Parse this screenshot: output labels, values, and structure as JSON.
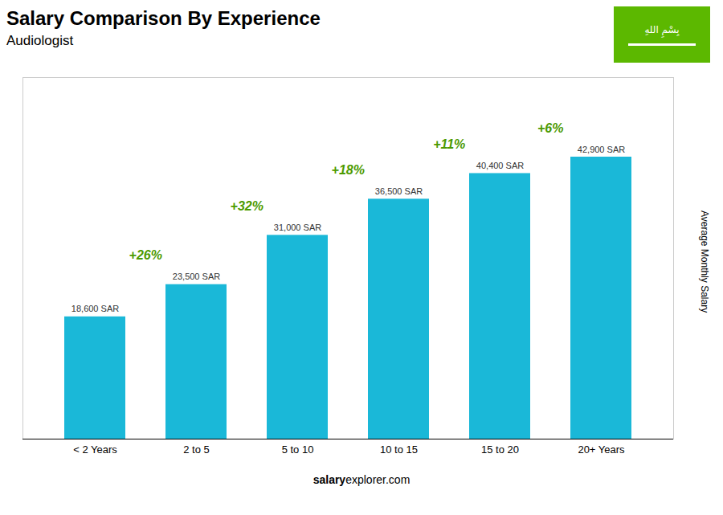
{
  "chart_data": {
    "type": "bar",
    "title": "Salary Comparison By Experience",
    "subtitle": "Audiologist",
    "categories": [
      "< 2 Years",
      "2 to 5",
      "5 to 10",
      "10 to 15",
      "15 to 20",
      "20+ Years"
    ],
    "values": [
      18600,
      23500,
      31000,
      36500,
      40400,
      42900
    ],
    "value_labels": [
      "18,600 SAR",
      "23,500 SAR",
      "31,000 SAR",
      "36,500 SAR",
      "40,400 SAR",
      "42,900 SAR"
    ],
    "annotations": [
      null,
      "+26%",
      "+32%",
      "+18%",
      "+11%",
      "+6%"
    ],
    "ylabel": "Average Monthly Salary",
    "footer_bold": "salary",
    "footer_normal": "explorer.com",
    "flag_text": "بِسْمِ اللهِ",
    "color": "#1ab8d8",
    "ylim": [
      0,
      55000
    ],
    "tick_labels": "x",
    "grid": false,
    "data_labels": true
  }
}
